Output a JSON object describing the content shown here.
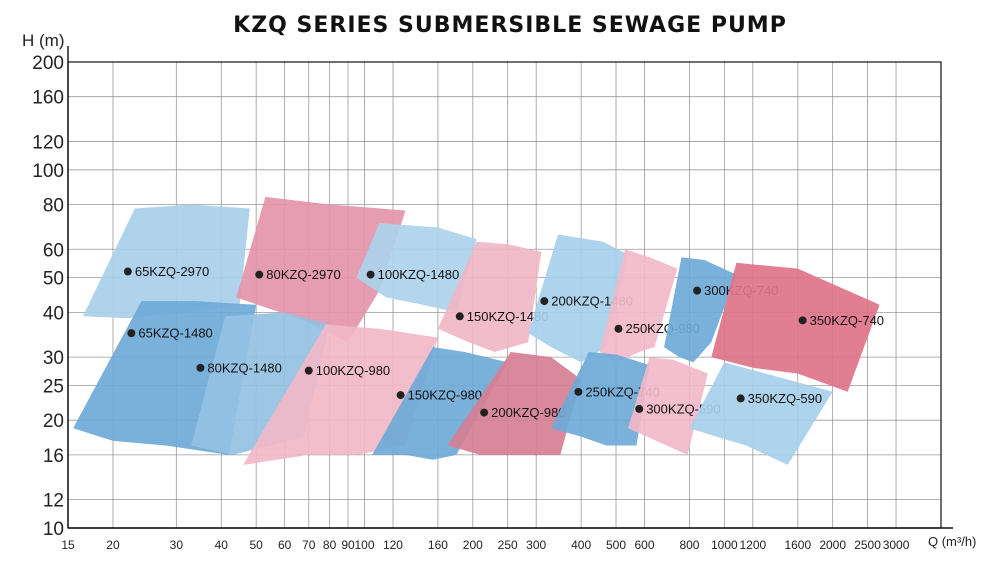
{
  "chart_data": {
    "type": "area",
    "title": "KZQ SERIES SUBMERSIBLE SEWAGE PUMP",
    "ylabel": "H (m)",
    "xlabel": "Q (m³/h)",
    "x_scale": "log",
    "y_scale": "log",
    "xlim": [
      15,
      4000
    ],
    "ylim": [
      10,
      200
    ],
    "grid": true,
    "yticks": [
      {
        "value": 10,
        "label": "10"
      },
      {
        "value": 12,
        "label": "12"
      },
      {
        "value": 16,
        "label": "16"
      },
      {
        "value": 20,
        "label": "20"
      },
      {
        "value": 25,
        "label": "25"
      },
      {
        "value": 30,
        "label": "30"
      },
      {
        "value": 40,
        "label": "40"
      },
      {
        "value": 50,
        "label": "50"
      },
      {
        "value": 60,
        "label": "60"
      },
      {
        "value": 80,
        "label": "80"
      },
      {
        "value": 100,
        "label": "100"
      },
      {
        "value": 120,
        "label": "120"
      },
      {
        "value": 160,
        "label": "160"
      },
      {
        "value": 200,
        "label": "200"
      }
    ],
    "xticks": [
      {
        "value": 15,
        "label": "15"
      },
      {
        "value": 20,
        "label": "20"
      },
      {
        "value": 30,
        "label": "30"
      },
      {
        "value": 40,
        "label": "40"
      },
      {
        "value": 50,
        "label": "50"
      },
      {
        "value": 60,
        "label": "60"
      },
      {
        "value": 70,
        "label": "70"
      },
      {
        "value": 80,
        "label": "80"
      },
      {
        "value": 90,
        "label": "90"
      },
      {
        "value": 100,
        "label": "100"
      },
      {
        "value": 120,
        "label": "120"
      },
      {
        "value": 160,
        "label": "160"
      },
      {
        "value": 200,
        "label": "200"
      },
      {
        "value": 250,
        "label": "250"
      },
      {
        "value": 300,
        "label": "300"
      },
      {
        "value": 400,
        "label": "400"
      },
      {
        "value": 500,
        "label": "500"
      },
      {
        "value": 600,
        "label": "600"
      },
      {
        "value": 800,
        "label": "800"
      },
      {
        "value": 1000,
        "label": "1000"
      },
      {
        "value": 1200,
        "label": "1200"
      },
      {
        "value": 1600,
        "label": "1600"
      },
      {
        "value": 2000,
        "label": "2000"
      },
      {
        "value": 2500,
        "label": "2500"
      },
      {
        "value": 3000,
        "label": "3000"
      }
    ],
    "regions": [
      {
        "name": "65KZQ-2970",
        "color": "#a8cfe9",
        "label_at": [
          22,
          52
        ],
        "outline": [
          [
            16.5,
            39
          ],
          [
            23,
            78
          ],
          [
            33,
            80
          ],
          [
            48,
            78
          ],
          [
            45,
            42
          ],
          [
            32,
            40
          ],
          [
            22,
            38.5
          ]
        ]
      },
      {
        "name": "80KZQ-2970",
        "color": "#e495aa",
        "label_at": [
          51,
          51
        ],
        "outline": [
          [
            44,
            44
          ],
          [
            53,
            84
          ],
          [
            80,
            80
          ],
          [
            130,
            77
          ],
          [
            110,
            46
          ],
          [
            90,
            33
          ],
          [
            68,
            38
          ]
        ]
      },
      {
        "name": "100KZQ-1480",
        "color": "#add3ec",
        "label_at": [
          104,
          51
        ],
        "outline": [
          [
            95,
            50
          ],
          [
            110,
            71
          ],
          [
            160,
            69
          ],
          [
            205,
            64
          ],
          [
            180,
            40
          ],
          [
            145,
            42
          ],
          [
            115,
            44
          ]
        ]
      },
      {
        "name": "150KZQ-1480",
        "color": "#f0b7c7",
        "label_at": [
          184,
          39
        ],
        "outline": [
          [
            160,
            36
          ],
          [
            205,
            63
          ],
          [
            250,
            62
          ],
          [
            310,
            59
          ],
          [
            285,
            33
          ],
          [
            230,
            31
          ],
          [
            195,
            33
          ]
        ]
      },
      {
        "name": "200KZQ-1480",
        "color": "#a7d0ec",
        "label_at": [
          316,
          43
        ],
        "outline": [
          [
            285,
            35
          ],
          [
            345,
            66
          ],
          [
            460,
            63
          ],
          [
            540,
            58
          ],
          [
            470,
            32
          ],
          [
            400,
            29
          ],
          [
            330,
            32
          ]
        ]
      },
      {
        "name": "250KZQ-980",
        "color": "#f2b9c9",
        "label_at": [
          508,
          36
        ],
        "outline": [
          [
            450,
            31
          ],
          [
            530,
            60
          ],
          [
            620,
            57
          ],
          [
            740,
            53
          ],
          [
            640,
            32
          ],
          [
            580,
            31
          ],
          [
            500,
            29
          ]
        ]
      },
      {
        "name": "300KZQ-740",
        "color": "#6eaad8",
        "label_at": [
          840,
          46
        ],
        "outline": [
          [
            680,
            32
          ],
          [
            760,
            57
          ],
          [
            880,
            56
          ],
          [
            1080,
            51
          ],
          [
            920,
            33
          ],
          [
            820,
            29
          ],
          [
            750,
            30
          ]
        ]
      },
      {
        "name": "350KZQ-740",
        "color": "#df7389",
        "label_at": [
          1650,
          38
        ],
        "outline": [
          [
            920,
            30
          ],
          [
            1080,
            55
          ],
          [
            1600,
            53
          ],
          [
            2700,
            42
          ],
          [
            2200,
            24
          ],
          [
            1600,
            27
          ],
          [
            1200,
            28
          ]
        ]
      },
      {
        "name": "65KZQ-1480",
        "color": "#6eaad8",
        "label_at": [
          22.5,
          35
        ],
        "outline": [
          [
            15.5,
            19
          ],
          [
            24,
            43
          ],
          [
            34,
            43
          ],
          [
            50,
            42
          ],
          [
            42,
            16
          ],
          [
            28,
            17
          ],
          [
            20,
            17.5
          ]
        ]
      },
      {
        "name": "80KZQ-1480",
        "color": "#95c1e3",
        "label_at": [
          35,
          28
        ],
        "outline": [
          [
            33,
            17
          ],
          [
            41,
            39
          ],
          [
            60,
            40
          ],
          [
            80,
            37
          ],
          [
            68,
            18
          ],
          [
            55,
            17
          ],
          [
            43,
            16
          ]
        ]
      },
      {
        "name": "100KZQ-980",
        "color": "#f1b8c8",
        "label_at": [
          70,
          27.5
        ],
        "outline": [
          [
            46,
            15
          ],
          [
            78,
            37
          ],
          [
            110,
            36
          ],
          [
            160,
            34
          ],
          [
            130,
            17
          ],
          [
            95,
            16
          ],
          [
            70,
            16
          ]
        ]
      },
      {
        "name": "150KZQ-980",
        "color": "#6eaad8",
        "label_at": [
          126,
          23.5
        ],
        "outline": [
          [
            105,
            16
          ],
          [
            155,
            32
          ],
          [
            190,
            31
          ],
          [
            250,
            29
          ],
          [
            180,
            16
          ],
          [
            155,
            15.5
          ],
          [
            130,
            16
          ]
        ]
      },
      {
        "name": "200KZQ-980",
        "color": "#d67f94",
        "label_at": [
          215,
          21
        ],
        "outline": [
          [
            170,
            17
          ],
          [
            255,
            31
          ],
          [
            330,
            30
          ],
          [
            400,
            26
          ],
          [
            350,
            16
          ],
          [
            270,
            16
          ],
          [
            210,
            16
          ]
        ]
      },
      {
        "name": "250KZQ-740",
        "color": "#6eaad8",
        "label_at": [
          393,
          24
        ],
        "outline": [
          [
            330,
            19
          ],
          [
            420,
            31
          ],
          [
            500,
            30.5
          ],
          [
            620,
            28.5
          ],
          [
            570,
            17
          ],
          [
            470,
            17
          ],
          [
            400,
            18
          ]
        ]
      },
      {
        "name": "300KZQ-590",
        "color": "#f2b9c9",
        "label_at": [
          580,
          21.5
        ],
        "outline": [
          [
            540,
            19
          ],
          [
            620,
            30
          ],
          [
            720,
            29.5
          ],
          [
            900,
            27
          ],
          [
            790,
            16
          ],
          [
            690,
            17
          ],
          [
            610,
            18
          ]
        ]
      },
      {
        "name": "350KZQ-590",
        "color": "#a7cfea",
        "label_at": [
          1110,
          23
        ],
        "outline": [
          [
            800,
            19
          ],
          [
            1000,
            29
          ],
          [
            1300,
            27
          ],
          [
            2000,
            24
          ],
          [
            1500,
            15
          ],
          [
            1150,
            17
          ],
          [
            950,
            18
          ]
        ]
      }
    ]
  }
}
